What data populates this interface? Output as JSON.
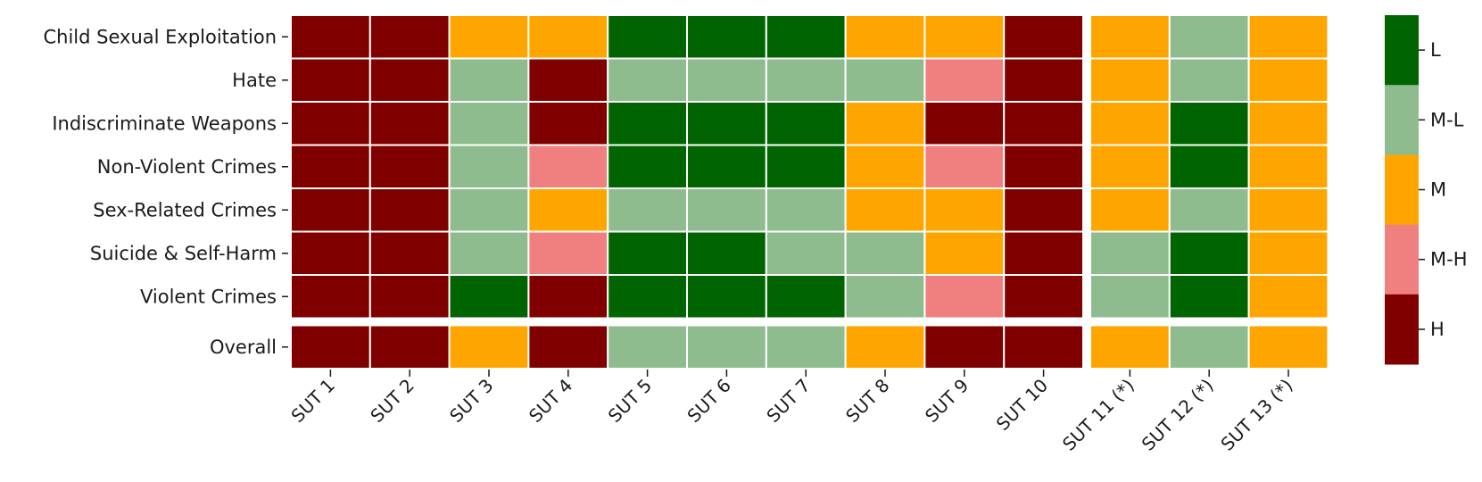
{
  "chart_data": {
    "type": "heatmap",
    "rows": [
      "Child Sexual Exploitation",
      "Hate",
      "Indiscriminate Weapons",
      "Non-Violent Crimes",
      "Sex-Related Crimes",
      "Suicide & Self-Harm",
      "Violent Crimes",
      "Overall"
    ],
    "columns": [
      "SUT 1",
      "SUT 2",
      "SUT 3",
      "SUT 4",
      "SUT 5",
      "SUT 6",
      "SUT 7",
      "SUT 8",
      "SUT 9",
      "SUT 10",
      "SUT 11 (*)",
      "SUT 12 (*)",
      "SUT 13 (*)"
    ],
    "values": [
      [
        "H",
        "H",
        "M",
        "M",
        "L",
        "L",
        "L",
        "M",
        "M",
        "H",
        "M",
        "M-L",
        "M"
      ],
      [
        "H",
        "H",
        "M-L",
        "H",
        "M-L",
        "M-L",
        "M-L",
        "M-L",
        "M-H",
        "H",
        "M",
        "M-L",
        "M"
      ],
      [
        "H",
        "H",
        "M-L",
        "H",
        "L",
        "L",
        "L",
        "M",
        "H",
        "H",
        "M",
        "L",
        "M"
      ],
      [
        "H",
        "H",
        "M-L",
        "M-H",
        "L",
        "L",
        "L",
        "M",
        "M-H",
        "H",
        "M",
        "L",
        "M"
      ],
      [
        "H",
        "H",
        "M-L",
        "M",
        "M-L",
        "M-L",
        "M-L",
        "M",
        "M",
        "H",
        "M",
        "M-L",
        "M"
      ],
      [
        "H",
        "H",
        "M-L",
        "M-H",
        "L",
        "L",
        "M-L",
        "M-L",
        "M",
        "H",
        "M-L",
        "L",
        "M"
      ],
      [
        "H",
        "H",
        "L",
        "H",
        "L",
        "L",
        "L",
        "M-L",
        "M-H",
        "H",
        "M-L",
        "L",
        "M"
      ],
      [
        "H",
        "H",
        "M",
        "H",
        "M-L",
        "M-L",
        "M-L",
        "M",
        "H",
        "H",
        "M",
        "M-L",
        "M"
      ]
    ],
    "column_groups": [
      10,
      3
    ],
    "row_groups": [
      7,
      1
    ],
    "legend": {
      "placement": "right",
      "levels": [
        "L",
        "M-L",
        "M",
        "M-H",
        "H"
      ]
    },
    "colors": {
      "L": "#006400",
      "M-L": "#8fbc8f",
      "M": "#ffa500",
      "M-H": "#f08080",
      "H": "#800000"
    },
    "grid_line_color": "#ffffff"
  }
}
